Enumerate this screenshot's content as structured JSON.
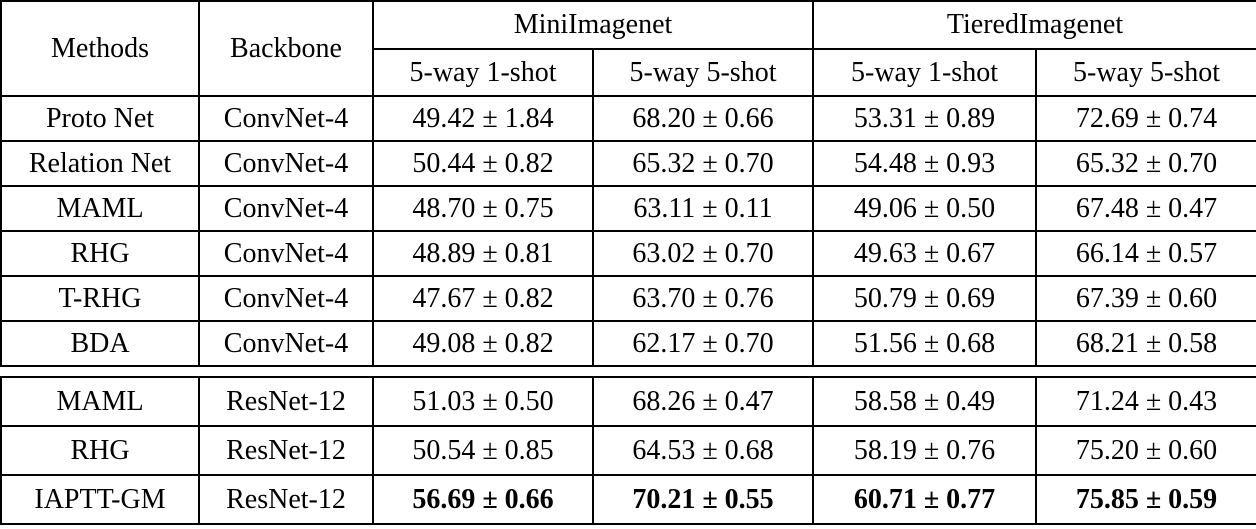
{
  "header": {
    "methods": "Methods",
    "backbone": "Backbone",
    "group1": "MiniImagenet",
    "group2": "TieredImagenet",
    "sub1": "5-way 1-shot",
    "sub2": "5-way 5-shot",
    "sub3": "5-way 1-shot",
    "sub4": "5-way 5-shot"
  },
  "section1": {
    "rows": [
      {
        "method": "Proto Net",
        "backbone": "ConvNet-4",
        "c1": "49.42 ± 1.84",
        "c2": "68.20 ± 0.66",
        "c3": "53.31 ± 0.89",
        "c4": "72.69 ± 0.74"
      },
      {
        "method": "Relation Net",
        "backbone": "ConvNet-4",
        "c1": "50.44 ± 0.82",
        "c2": "65.32 ± 0.70",
        "c3": "54.48 ± 0.93",
        "c4": "65.32 ± 0.70"
      },
      {
        "method": "MAML",
        "backbone": "ConvNet-4",
        "c1": "48.70 ± 0.75",
        "c2": "63.11 ± 0.11",
        "c3": "49.06 ± 0.50",
        "c4": "67.48 ± 0.47"
      },
      {
        "method": "RHG",
        "backbone": "ConvNet-4",
        "c1": "48.89 ± 0.81",
        "c2": "63.02 ± 0.70",
        "c3": "49.63 ± 0.67",
        "c4": "66.14 ± 0.57"
      },
      {
        "method": "T-RHG",
        "backbone": "ConvNet-4",
        "c1": "47.67 ± 0.82",
        "c2": "63.70 ± 0.76",
        "c3": "50.79 ± 0.69",
        "c4": "67.39 ± 0.60"
      },
      {
        "method": "BDA",
        "backbone": "ConvNet-4",
        "c1": "49.08 ± 0.82",
        "c2": "62.17 ± 0.70",
        "c3": "51.56 ± 0.68",
        "c4": "68.21 ± 0.58"
      }
    ]
  },
  "section2": {
    "rows": [
      {
        "method": "MAML",
        "backbone": "ResNet-12",
        "c1": "51.03 ± 0.50",
        "c2": "68.26 ± 0.47",
        "c3": "58.58 ± 0.49",
        "c4": "71.24 ± 0.43"
      },
      {
        "method": "RHG",
        "backbone": "ResNet-12",
        "c1": "50.54 ± 0.85",
        "c2": "64.53 ± 0.68",
        "c3": "58.19 ± 0.76",
        "c4": "75.20 ± 0.60"
      },
      {
        "method": "IAPTT-GM",
        "backbone": "ResNet-12",
        "c1": "56.69 ± 0.66",
        "c2": "70.21 ± 0.55",
        "c3": "60.71 ± 0.77",
        "c4": "75.85 ± 0.59"
      }
    ]
  }
}
